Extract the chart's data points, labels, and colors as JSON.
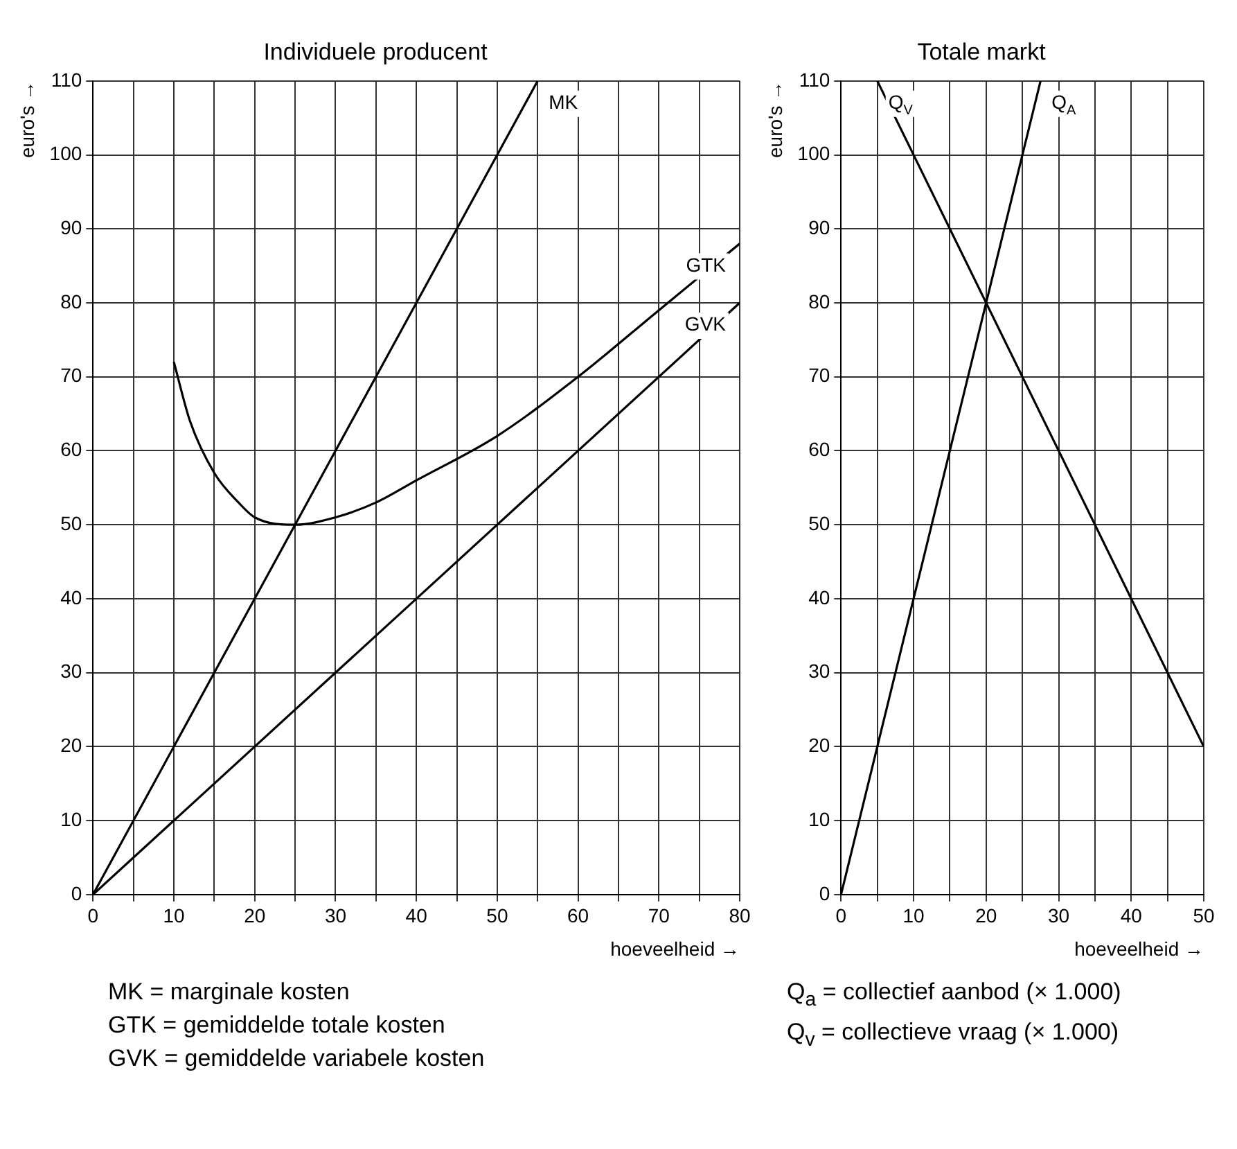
{
  "chart_data": [
    {
      "type": "line",
      "title": "Individuele producent",
      "xlabel": "hoeveelheid →",
      "ylabel": "euro's →",
      "xlim": [
        0,
        80
      ],
      "ylim": [
        0,
        110
      ],
      "xticks": [
        0,
        {
          "value": 5,
          "label": null
        },
        10,
        {
          "value": 15,
          "label": null
        },
        20,
        {
          "value": 25,
          "label": null
        },
        30,
        {
          "value": 35,
          "label": null
        },
        40,
        {
          "value": 45,
          "label": null
        },
        50,
        {
          "value": 55,
          "label": null
        },
        60,
        {
          "value": 65,
          "label": null
        },
        70,
        {
          "value": 75,
          "label": null
        },
        80
      ],
      "yticks": [
        0,
        10,
        20,
        30,
        40,
        50,
        60,
        70,
        80,
        90,
        100,
        110
      ],
      "grid": true,
      "marker": "none",
      "line_style": "solid",
      "series": [
        {
          "name": "MK",
          "color": "#000000",
          "x": [
            0,
            55
          ],
          "values": [
            0,
            110
          ]
        },
        {
          "name": "GTK",
          "color": "#000000",
          "x": [
            10,
            12,
            15,
            18,
            20,
            25,
            30,
            35,
            40,
            50,
            60,
            70,
            80
          ],
          "values": [
            72,
            64,
            57,
            53,
            51,
            50,
            51,
            53,
            56,
            62,
            70,
            79,
            88
          ]
        },
        {
          "name": "GVK",
          "color": "#000000",
          "x": [
            0,
            80
          ],
          "values": [
            0,
            80
          ]
        }
      ],
      "annotations": [
        "MK = marginale kosten",
        "GTK = gemiddelde totale kosten",
        "GVK = gemiddelde variabele kosten"
      ]
    },
    {
      "type": "line",
      "title": "Totale markt",
      "xlabel": "hoeveelheid →",
      "ylabel": "euro's →",
      "xlim": [
        0,
        50
      ],
      "ylim": [
        0,
        110
      ],
      "xticks": [
        0,
        {
          "value": 5,
          "label": null
        },
        10,
        {
          "value": 15,
          "label": null
        },
        20,
        {
          "value": 25,
          "label": null
        },
        30,
        {
          "value": 35,
          "label": null
        },
        40,
        {
          "value": 45,
          "label": null
        },
        50
      ],
      "yticks": [
        0,
        10,
        20,
        30,
        40,
        50,
        60,
        70,
        80,
        90,
        100,
        110
      ],
      "grid": true,
      "marker": "none",
      "line_style": "solid",
      "series": [
        {
          "name": "Q$_{V}$",
          "color": "#000000",
          "x": [
            5,
            50
          ],
          "values": [
            110,
            20
          ]
        },
        {
          "name": "Q$_{A}$",
          "color": "#000000",
          "x": [
            0,
            27.5
          ],
          "values": [
            0,
            110
          ]
        }
      ],
      "annotations": [
        "Q$_{a}$ = collectief aanbod (× 1.000)",
        "Q$_{v}$ = collectieve vraag (× 1.000)"
      ]
    }
  ]
}
